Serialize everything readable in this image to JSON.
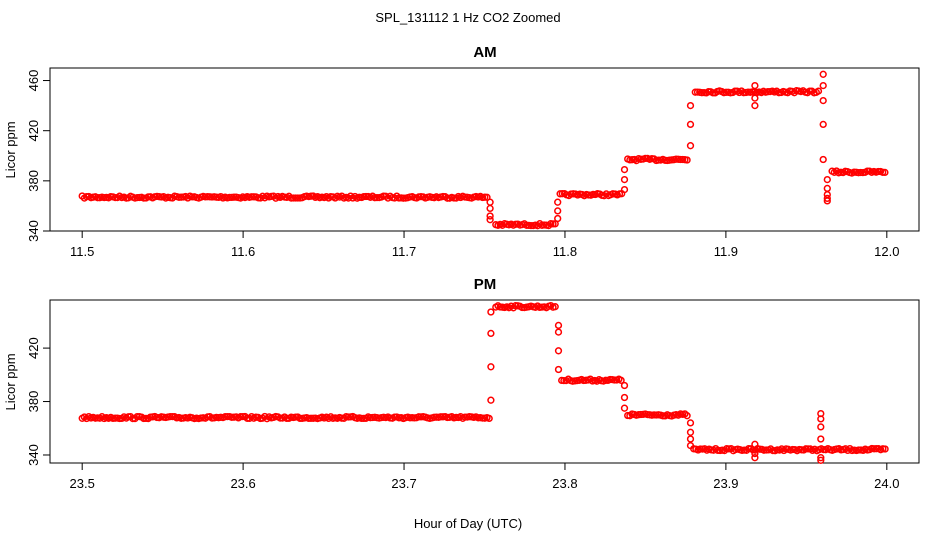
{
  "figure": {
    "title": "SPL_131112  1 Hz CO2 Zoomed",
    "xlabel": "Hour of Day (UTC)",
    "marker_color": "#ff0000"
  },
  "chart_data": [
    {
      "type": "scatter",
      "title": "AM",
      "xlabel": "Hour of Day (UTC)",
      "ylabel": "Licor ppm",
      "xlim": [
        11.48,
        12.02
      ],
      "ylim": [
        340,
        470
      ],
      "xticks": [
        "11.5",
        "11.6",
        "11.7",
        "11.8",
        "11.9",
        "12.0"
      ],
      "yticks": [
        "340",
        "380",
        "420",
        "460"
      ],
      "grid": false,
      "levels": [
        {
          "x": [
            11.5,
            11.752
          ],
          "y": 367
        },
        {
          "x": [
            11.757,
            11.794
          ],
          "y": 345
        },
        {
          "x": [
            11.797,
            11.836
          ],
          "y": 369
        },
        {
          "x": [
            11.839,
            11.876
          ],
          "y": 397
        },
        {
          "x": [
            11.881,
            11.958
          ],
          "y": 451
        },
        {
          "x": [
            11.966,
            12.0
          ],
          "y": 387
        }
      ],
      "transitions": [
        {
          "x": 11.7535,
          "y": [
            358,
            352,
            349,
            363
          ]
        },
        {
          "x": 11.7955,
          "y": [
            350,
            356,
            363
          ]
        },
        {
          "x": 11.837,
          "y": [
            373,
            381,
            389
          ]
        },
        {
          "x": 11.878,
          "y": [
            408,
            425,
            440
          ]
        },
        {
          "x": 11.918,
          "y": [
            440,
            446,
            456
          ]
        },
        {
          "x": 11.9605,
          "y": [
            465,
            456,
            444,
            425,
            397
          ]
        },
        {
          "x": 11.963,
          "y": [
            374,
            366,
            364,
            369,
            381
          ]
        }
      ]
    },
    {
      "type": "scatter",
      "title": "PM",
      "xlabel": "Hour of Day (UTC)",
      "ylabel": "Licor ppm",
      "xlim": [
        23.48,
        24.02
      ],
      "ylim": [
        334,
        456
      ],
      "xticks": [
        "23.5",
        "23.6",
        "23.7",
        "23.8",
        "23.9",
        "24.0"
      ],
      "yticks": [
        "340",
        "380",
        "420"
      ],
      "grid": false,
      "levels": [
        {
          "x": [
            23.5,
            23.753
          ],
          "y": 368
        },
        {
          "x": [
            23.757,
            23.794
          ],
          "y": 451
        },
        {
          "x": [
            23.798,
            23.836
          ],
          "y": 396
        },
        {
          "x": [
            23.839,
            23.876
          ],
          "y": 370
        },
        {
          "x": [
            23.88,
            24.0
          ],
          "y": 344
        }
      ],
      "transitions": [
        {
          "x": 23.754,
          "y": [
            381,
            406,
            431,
            447
          ]
        },
        {
          "x": 23.796,
          "y": [
            437,
            432,
            418,
            404
          ]
        },
        {
          "x": 23.837,
          "y": [
            392,
            383,
            375
          ]
        },
        {
          "x": 23.878,
          "y": [
            364,
            357,
            352,
            347
          ]
        },
        {
          "x": 23.918,
          "y": [
            348,
            341,
            338
          ]
        },
        {
          "x": 23.959,
          "y": [
            371,
            367,
            361,
            352,
            338,
            336
          ]
        }
      ]
    }
  ]
}
